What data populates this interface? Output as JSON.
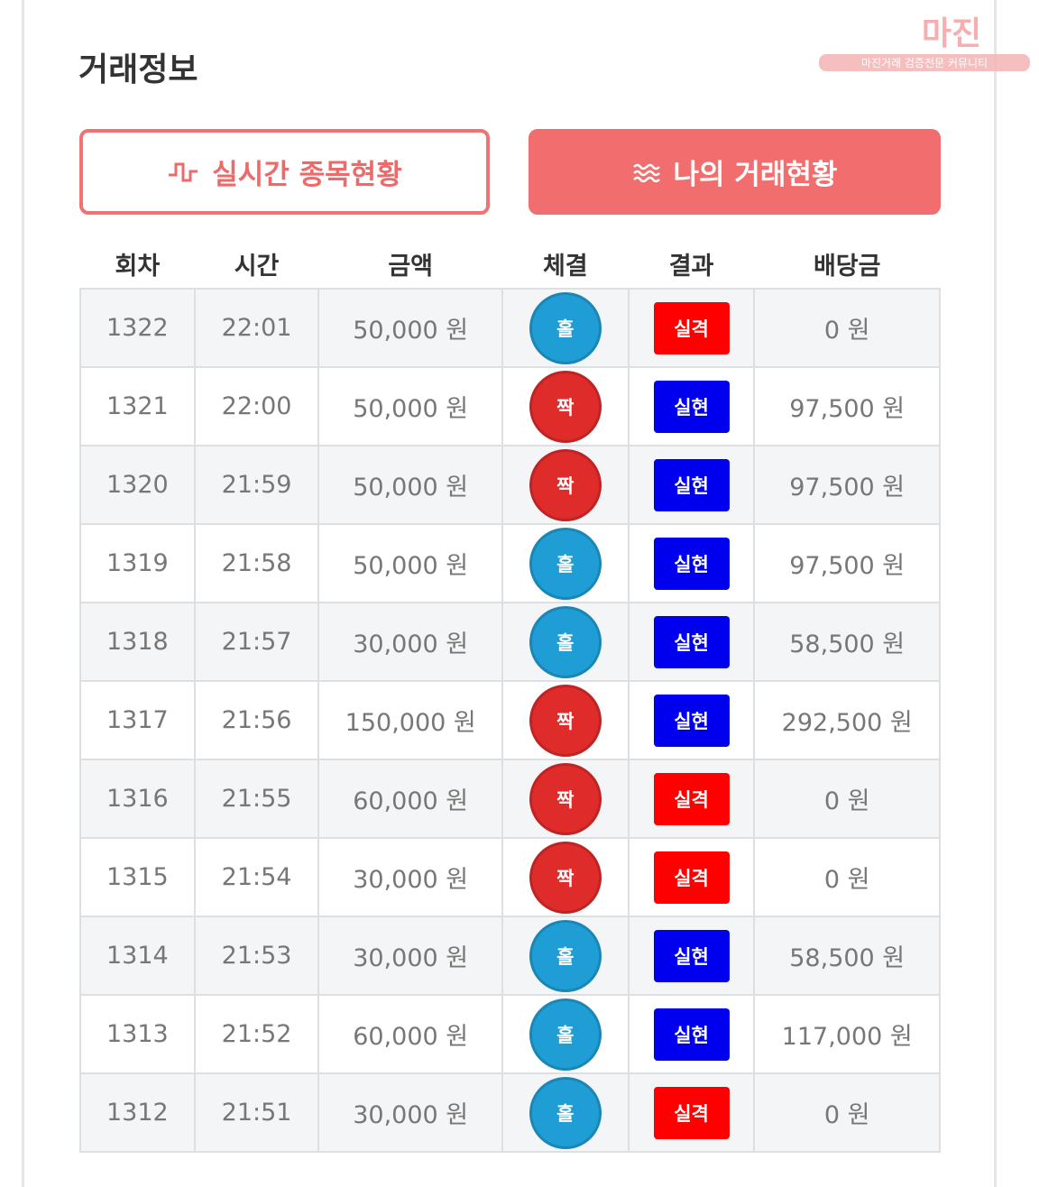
{
  "watermark": {
    "brand": "마진",
    "tagline": "마진거래 검증전문 커뮤니티"
  },
  "header": {
    "title": "거래정보"
  },
  "tabs": [
    {
      "label": "실시간 종목현황"
    },
    {
      "label": "나의 거래현황"
    }
  ],
  "table": {
    "columns": [
      "회차",
      "시간",
      "금액",
      "체결",
      "결과",
      "배당금"
    ],
    "pick_colors": {
      "홀": "#1f9ed6",
      "짝": "#e02b2b"
    },
    "result_colors": {
      "실격": "#ff0000",
      "실현": "#0000ee"
    },
    "rows": [
      [
        "1322",
        "22:01",
        "50,000 원",
        "홀",
        "실격",
        "0 원"
      ],
      [
        "1321",
        "22:00",
        "50,000 원",
        "짝",
        "실현",
        "97,500 원"
      ],
      [
        "1320",
        "21:59",
        "50,000 원",
        "짝",
        "실현",
        "97,500 원"
      ],
      [
        "1319",
        "21:58",
        "50,000 원",
        "홀",
        "실현",
        "97,500 원"
      ],
      [
        "1318",
        "21:57",
        "30,000 원",
        "홀",
        "실현",
        "58,500 원"
      ],
      [
        "1317",
        "21:56",
        "150,000 원",
        "짝",
        "실현",
        "292,500 원"
      ],
      [
        "1316",
        "21:55",
        "60,000 원",
        "짝",
        "실격",
        "0 원"
      ],
      [
        "1315",
        "21:54",
        "30,000 원",
        "짝",
        "실격",
        "0 원"
      ],
      [
        "1314",
        "21:53",
        "30,000 원",
        "홀",
        "실현",
        "58,500 원"
      ],
      [
        "1313",
        "21:52",
        "60,000 원",
        "홀",
        "실현",
        "117,000 원"
      ],
      [
        "1312",
        "21:51",
        "30,000 원",
        "홀",
        "실격",
        "0 원"
      ]
    ]
  }
}
